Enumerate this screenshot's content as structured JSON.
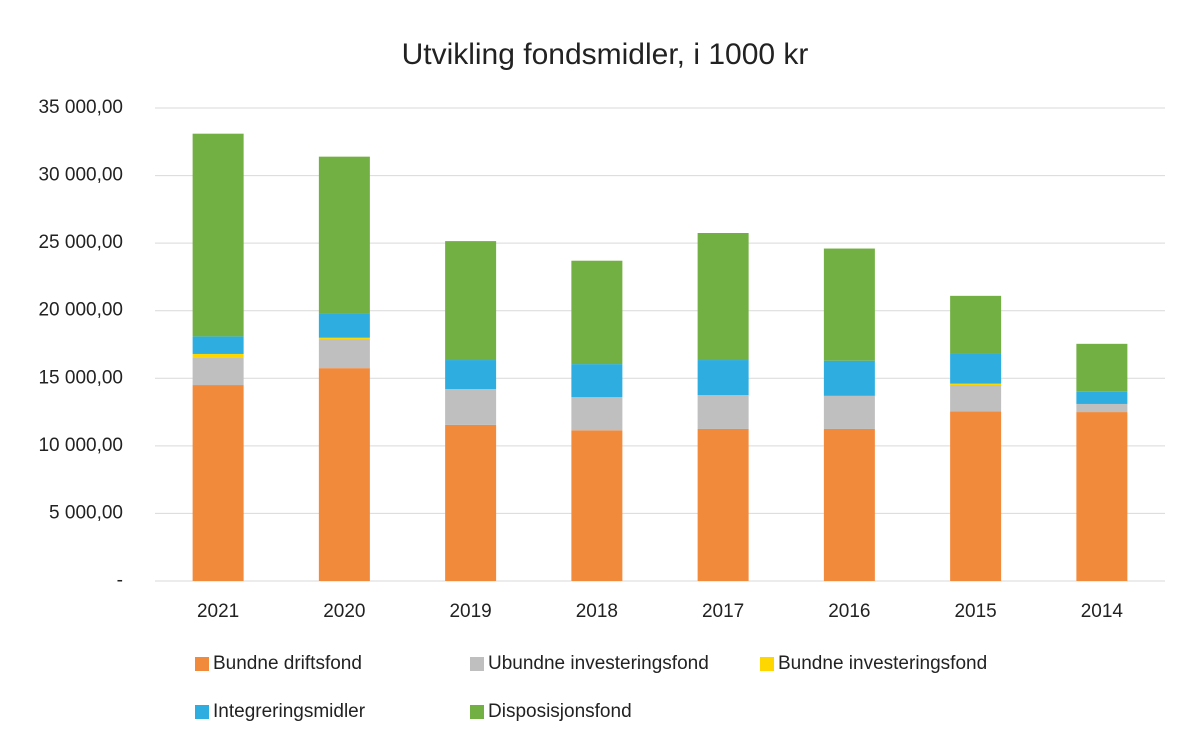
{
  "chart_data": {
    "type": "stacked_bar",
    "title": "Utvikling fondsmidler, i 1000 kr",
    "categories": [
      "2021",
      "2020",
      "2019",
      "2018",
      "2017",
      "2016",
      "2015",
      "2014"
    ],
    "series": [
      {
        "name": "Bundne driftsfond",
        "color": "#f28a3c",
        "values": [
          14500,
          15750,
          11550,
          11150,
          11250,
          11250,
          12550,
          12500
        ]
      },
      {
        "name": "Ubundne investeringsfond",
        "color": "#bfbfbf",
        "values": [
          2000,
          2150,
          2650,
          2450,
          2500,
          2450,
          1950,
          600
        ]
      },
      {
        "name": "Bundne investeringsfond",
        "color": "#ffd700",
        "values": [
          300,
          100,
          0,
          0,
          0,
          0,
          100,
          0
        ]
      },
      {
        "name": "Integreringsmidler",
        "color": "#2eaee0",
        "values": [
          1300,
          1800,
          2150,
          2450,
          2600,
          2600,
          2200,
          900
        ]
      },
      {
        "name": "Disposisjonsfond",
        "color": "#72b043",
        "values": [
          15000,
          11600,
          8800,
          7650,
          9400,
          8300,
          4300,
          3550
        ]
      }
    ],
    "ylim": [
      0,
      35000
    ],
    "yticks": [
      {
        "value": 0,
        "label": "-"
      },
      {
        "value": 5000,
        "label": "5 000,00"
      },
      {
        "value": 10000,
        "label": "10 000,00"
      },
      {
        "value": 15000,
        "label": "15 000,00"
      },
      {
        "value": 20000,
        "label": "20 000,00"
      },
      {
        "value": 25000,
        "label": "25 000,00"
      },
      {
        "value": 30000,
        "label": "30 000,00"
      },
      {
        "value": 35000,
        "label": "35 000,00"
      }
    ],
    "grid": true
  }
}
